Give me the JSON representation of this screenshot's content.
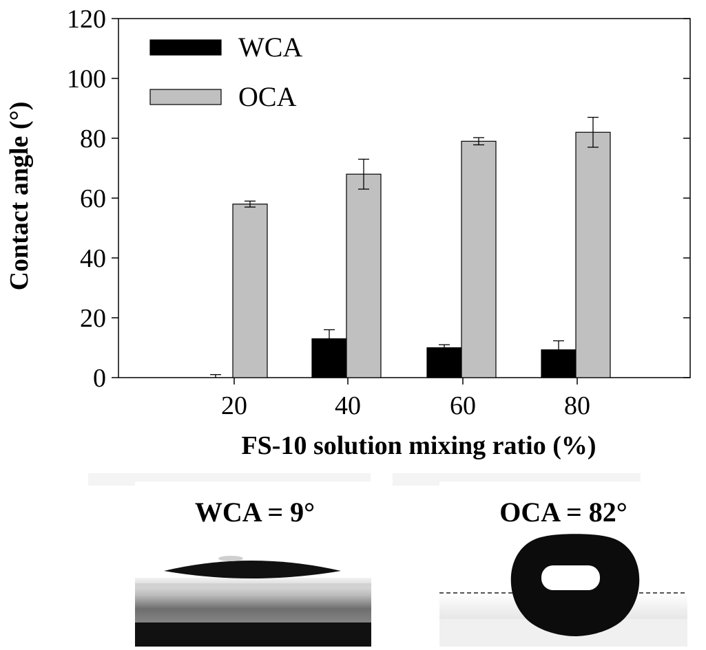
{
  "chart_data": {
    "type": "bar",
    "title": "",
    "xlabel": "FS-10 solution mixing ratio (%)",
    "ylabel": "Contact angle (°)",
    "ylim": [
      0,
      120
    ],
    "yticks": [
      0,
      20,
      40,
      60,
      80,
      100,
      120
    ],
    "categories": [
      "20",
      "40",
      "60",
      "80"
    ],
    "series": [
      {
        "name": "WCA",
        "color": "#000000",
        "values": [
          0,
          13,
          10,
          9.3
        ],
        "errors": [
          1,
          3,
          1,
          3
        ]
      },
      {
        "name": "OCA",
        "color": "#c0c0c0",
        "values": [
          58,
          68,
          79,
          82
        ],
        "errors": [
          1,
          5,
          1.2,
          5
        ]
      }
    ],
    "legend_position": "top-left",
    "grid": false
  },
  "photos": [
    {
      "label": "WCA = 9°"
    },
    {
      "label": "OCA = 82°"
    }
  ]
}
